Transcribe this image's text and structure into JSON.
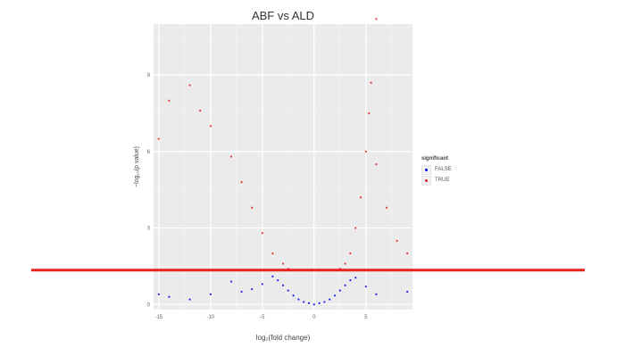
{
  "chart_data": {
    "type": "scatter",
    "title": "ABF vs ALD",
    "xlabel": "log₂(fold change)",
    "ylabel": "−log₁₀(p value)",
    "xlim": [
      -15.5,
      9.5
    ],
    "ylim": [
      -0.2,
      11
    ],
    "x_ticks": [
      -15,
      -10,
      -5,
      0,
      5
    ],
    "y_ticks": [
      0,
      3,
      6,
      9
    ],
    "grid": true,
    "legend_position": "right",
    "legend": {
      "title": "significant",
      "entries": [
        {
          "label": "FALSE",
          "color": "#0000ee"
        },
        {
          "label": "TRUE",
          "color": "#e41a1c"
        }
      ]
    },
    "threshold_line": {
      "y": 1.35,
      "color": "#e8231d"
    },
    "series": [
      {
        "name": "FALSE",
        "color": "#0000ee",
        "points": [
          [
            0,
            0
          ],
          [
            -0.5,
            0.05
          ],
          [
            0.5,
            0.05
          ],
          [
            -1,
            0.1
          ],
          [
            1,
            0.1
          ],
          [
            -1.5,
            0.2
          ],
          [
            1.5,
            0.2
          ],
          [
            -2,
            0.35
          ],
          [
            2,
            0.35
          ],
          [
            -2.5,
            0.55
          ],
          [
            2.5,
            0.55
          ],
          [
            -3,
            0.75
          ],
          [
            3,
            0.75
          ],
          [
            -3.5,
            0.95
          ],
          [
            3.5,
            0.95
          ],
          [
            -4,
            1.1
          ],
          [
            4,
            1.05
          ],
          [
            -5,
            0.8
          ],
          [
            5,
            0.7
          ],
          [
            -6,
            0.6
          ],
          [
            6,
            0.4
          ],
          [
            -7,
            0.5
          ],
          [
            -8,
            0.9
          ],
          [
            -10,
            0.4
          ],
          [
            -12,
            0.2
          ],
          [
            -14,
            0.3
          ],
          [
            -15,
            0.4
          ],
          [
            9,
            0.5
          ]
        ]
      },
      {
        "name": "TRUE",
        "color": "#e41a1c",
        "points": [
          [
            -2.5,
            1.4
          ],
          [
            2.5,
            1.4
          ],
          [
            -3,
            1.6
          ],
          [
            3,
            1.6
          ],
          [
            -4,
            2.0
          ],
          [
            3.5,
            2.0
          ],
          [
            -5,
            2.8
          ],
          [
            4,
            3.0
          ],
          [
            -6,
            3.8
          ],
          [
            4.5,
            4.2
          ],
          [
            -7,
            4.8
          ],
          [
            5,
            6.0
          ],
          [
            -8,
            5.8
          ],
          [
            5.3,
            7.5
          ],
          [
            -10,
            7.0
          ],
          [
            5.5,
            8.7
          ],
          [
            -11,
            7.6
          ],
          [
            -12,
            8.6
          ],
          [
            -14,
            8.0
          ],
          [
            -15,
            6.5
          ],
          [
            6,
            5.5
          ],
          [
            7,
            3.8
          ],
          [
            8,
            2.5
          ],
          [
            9,
            2.0
          ],
          [
            6,
            11.2
          ]
        ]
      }
    ]
  }
}
